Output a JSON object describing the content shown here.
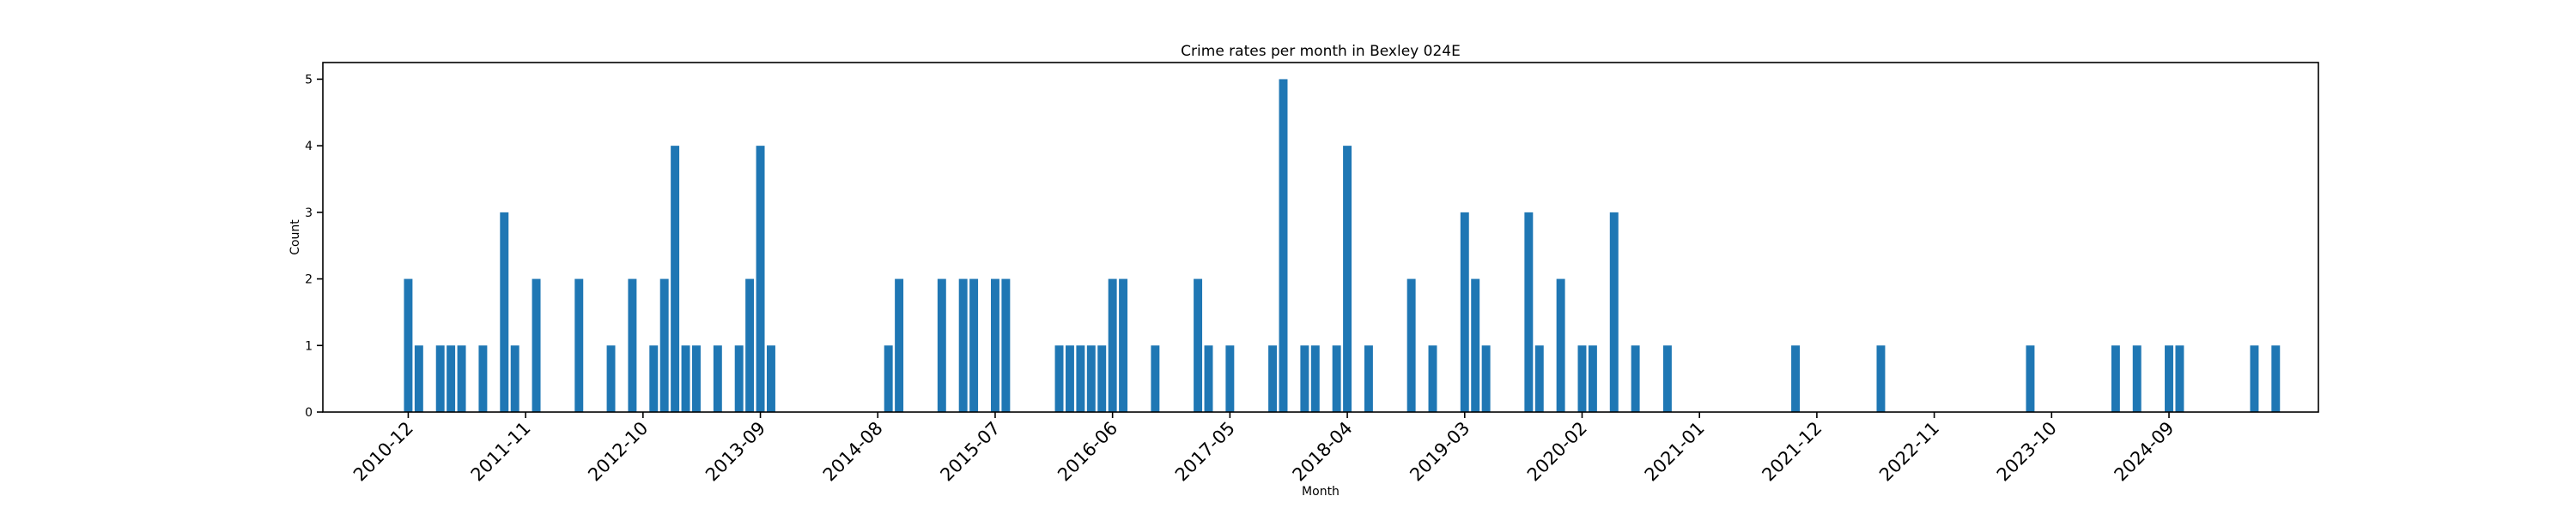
{
  "chart_data": {
    "type": "bar",
    "title": "Crime rates per month in Bexley 024E",
    "xlabel": "Month",
    "ylabel": "Count",
    "ylim": [
      0,
      5.25
    ],
    "yticks": [
      0,
      1,
      2,
      3,
      4,
      5
    ],
    "grid": false,
    "color": "#1f77b4",
    "x_range": [
      "2010-04",
      "2025-11"
    ],
    "xtick_labels": [
      "2010-12",
      "2011-11",
      "2012-10",
      "2013-09",
      "2014-08",
      "2015-07",
      "2016-06",
      "2017-05",
      "2018-04",
      "2019-03",
      "2020-02",
      "2021-01",
      "2021-12",
      "2022-11",
      "2023-10",
      "2024-09"
    ],
    "x": [
      "2010-12",
      "2011-01",
      "2011-03",
      "2011-04",
      "2011-05",
      "2011-07",
      "2011-09",
      "2011-10",
      "2011-12",
      "2012-04",
      "2012-07",
      "2012-09",
      "2012-11",
      "2012-12",
      "2013-01",
      "2013-02",
      "2013-03",
      "2013-05",
      "2013-07",
      "2013-08",
      "2013-09",
      "2013-10",
      "2014-09",
      "2014-10",
      "2015-02",
      "2015-04",
      "2015-05",
      "2015-07",
      "2015-08",
      "2016-01",
      "2016-02",
      "2016-03",
      "2016-04",
      "2016-05",
      "2016-06",
      "2016-07",
      "2016-10",
      "2017-02",
      "2017-03",
      "2017-05",
      "2017-09",
      "2017-10",
      "2017-12",
      "2018-01",
      "2018-03",
      "2018-04",
      "2018-06",
      "2018-10",
      "2018-12",
      "2019-03",
      "2019-04",
      "2019-05",
      "2019-09",
      "2019-10",
      "2019-12",
      "2020-02",
      "2020-03",
      "2020-05",
      "2020-07",
      "2020-10",
      "2021-10",
      "2022-06",
      "2023-08",
      "2024-04",
      "2024-06",
      "2024-09",
      "2024-10",
      "2025-05",
      "2025-07"
    ],
    "values": [
      2,
      1,
      1,
      1,
      1,
      1,
      3,
      1,
      2,
      2,
      1,
      2,
      1,
      2,
      4,
      1,
      1,
      1,
      1,
      2,
      4,
      1,
      1,
      2,
      2,
      2,
      2,
      2,
      2,
      1,
      1,
      1,
      1,
      1,
      2,
      2,
      1,
      2,
      1,
      1,
      1,
      5,
      1,
      1,
      1,
      4,
      1,
      2,
      1,
      3,
      2,
      1,
      3,
      1,
      2,
      1,
      1,
      3,
      1,
      1,
      1,
      1,
      1,
      1,
      1,
      1,
      1,
      1,
      1
    ]
  }
}
